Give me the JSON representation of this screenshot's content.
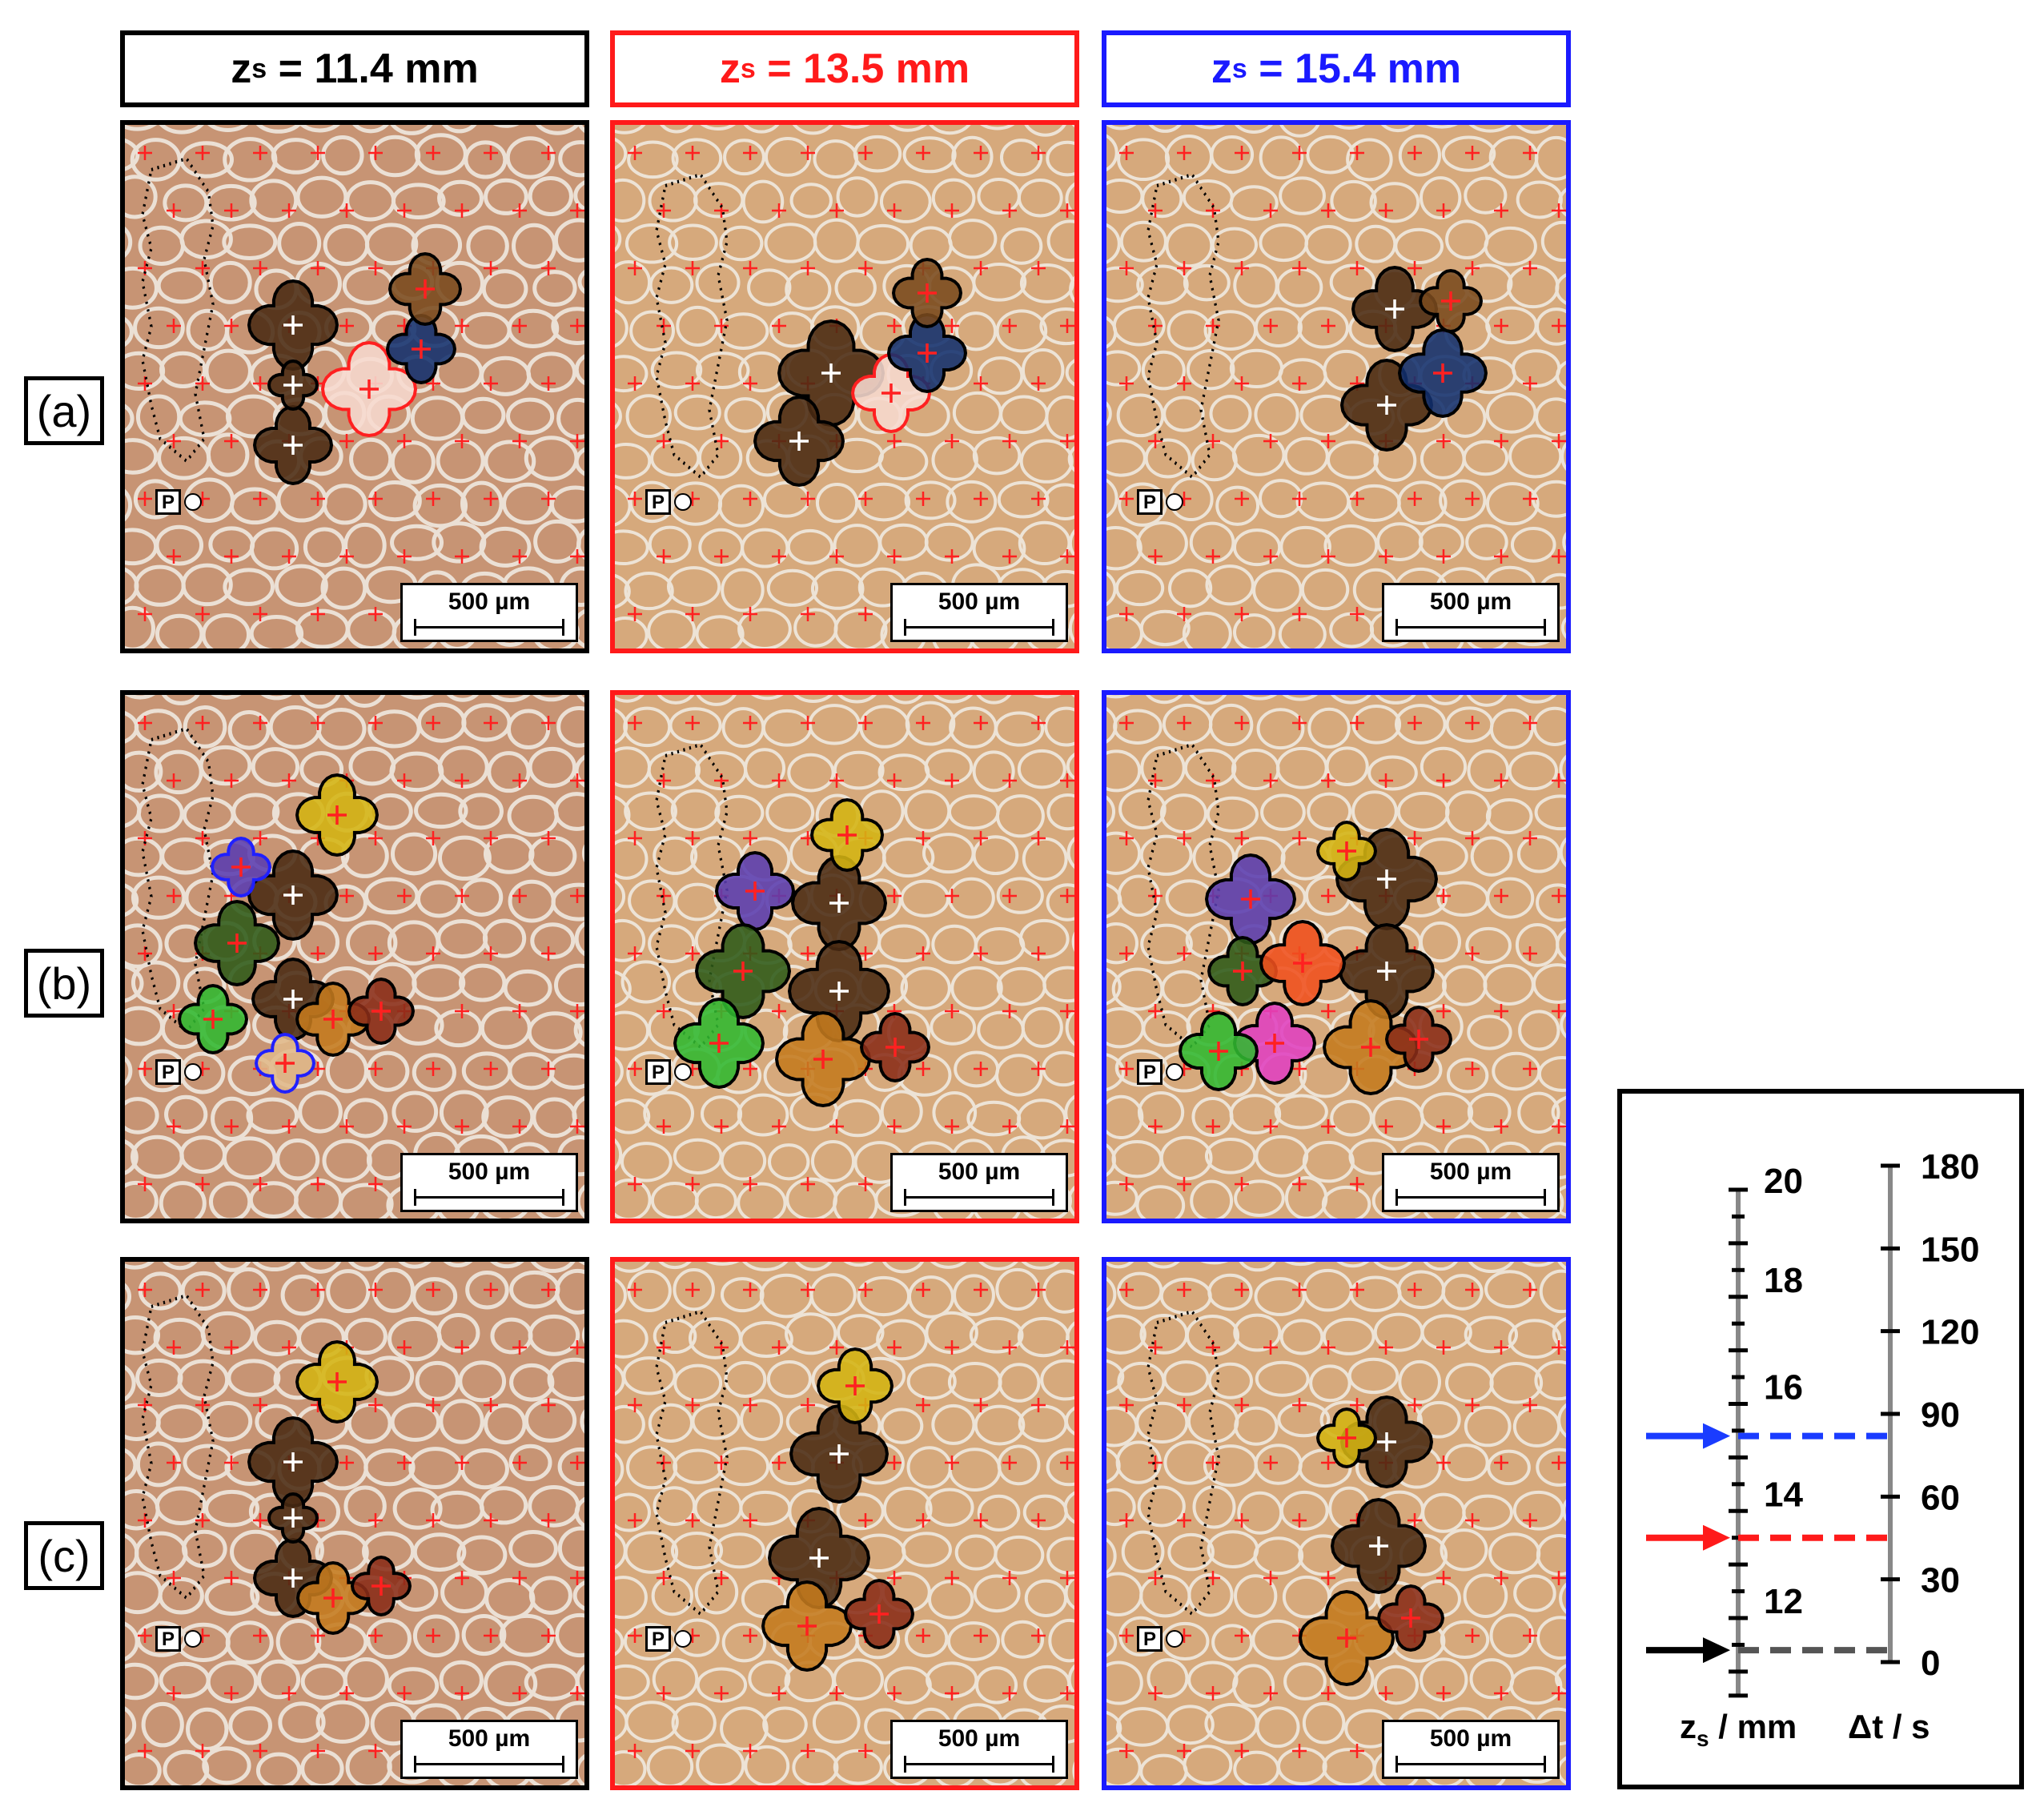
{
  "columns": [
    {
      "label_prefix": "z",
      "label_sub": "s",
      "label_value": " = 11.4 mm",
      "color": "#000000"
    },
    {
      "label_prefix": "z",
      "label_sub": "s",
      "label_value": " = 13.5 mm",
      "color": "#ff1a1a"
    },
    {
      "label_prefix": "z",
      "label_sub": "s",
      "label_value": " = 15.4 mm",
      "color": "#1a1aff"
    }
  ],
  "rows": [
    {
      "label": "(a)"
    },
    {
      "label": "(b)"
    },
    {
      "label": "(c)"
    }
  ],
  "panel": {
    "scale_bar_label": "500 µm",
    "marker_label": "P"
  },
  "legend": {
    "zs_axis": {
      "ticks": [
        "20",
        "18",
        "16",
        "14",
        "12"
      ],
      "label_main": "z",
      "label_sub": "s",
      "label_unit": " / mm"
    },
    "dt_axis": {
      "ticks": [
        "180",
        "150",
        "120",
        "90",
        "60",
        "30",
        "0"
      ],
      "label": "Δt / s"
    },
    "arrows": [
      {
        "color": "#1a3cff",
        "zs": 15.4
      },
      {
        "color": "#ff1a1a",
        "zs": 13.5
      },
      {
        "color": "#000000",
        "zs": 11.4
      }
    ]
  },
  "colors": {
    "background": "#d6a97c",
    "cell_boundary": "#f2eee6",
    "cross": "#ff2020",
    "grain_dark_brown": "#4a2a12",
    "grain_brown": "#7a4a1e",
    "grain_blue": "#12306e",
    "grain_pink_light": "#f7d9cf",
    "grain_yellow": "#d4b412",
    "grain_purple": "#5a3cb0",
    "grain_dark_green": "#2e5a18",
    "grain_green": "#30b830",
    "grain_orange": "#c47a1e",
    "grain_red_brown": "#8a2c18",
    "grain_orange_red": "#f0501e",
    "grain_magenta": "#e040c0"
  }
}
